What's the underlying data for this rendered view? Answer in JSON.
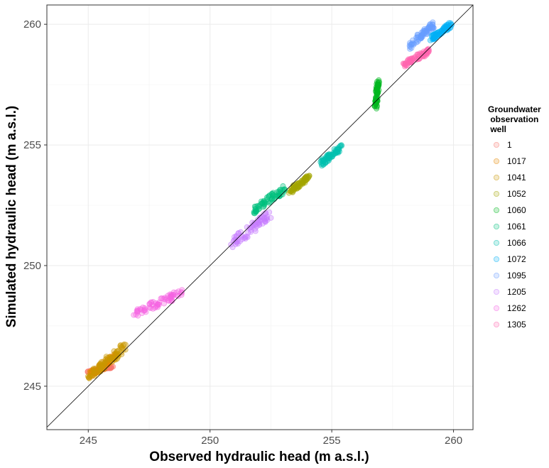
{
  "chart_data": {
    "type": "scatter",
    "title": "",
    "xlabel": "Observed hydraulic head (m a.s.l.)",
    "ylabel": "Simulated hydraulic head (m a.s.l.)",
    "xlim": [
      243.3,
      260.8
    ],
    "ylim": [
      243.2,
      260.8
    ],
    "xticks": [
      245,
      250,
      255,
      260
    ],
    "yticks": [
      245,
      250,
      255,
      260
    ],
    "grid": true,
    "reference_line": "1:1",
    "legend": {
      "title_lines": [
        "Groundwater",
        " observation",
        " well"
      ],
      "placement": "right"
    },
    "series": [
      {
        "name": "1",
        "color": "#F8766D",
        "x": [
          245.0,
          246.0
        ],
        "y": [
          245.6,
          245.8
        ]
      },
      {
        "name": "1017",
        "color": "#E58700",
        "x": [
          245.1,
          246.1
        ],
        "y": [
          245.45,
          246.25
        ]
      },
      {
        "name": "1041",
        "color": "#C99800",
        "x": [
          245.0,
          246.5
        ],
        "y": [
          245.4,
          246.6
        ]
      },
      {
        "name": "1052",
        "color": "#A3A500",
        "x": [
          253.3,
          254.1
        ],
        "y": [
          253.1,
          253.7
        ]
      },
      {
        "name": "1060",
        "color": "#00B81F",
        "x": [
          256.8,
          256.9
        ],
        "y": [
          256.6,
          257.6
        ]
      },
      {
        "name": "1061",
        "color": "#00BF7D",
        "x": [
          251.8,
          253.1
        ],
        "y": [
          252.3,
          253.2
        ]
      },
      {
        "name": "1066",
        "color": "#00C0AF",
        "x": [
          254.5,
          255.4
        ],
        "y": [
          254.2,
          254.9
        ]
      },
      {
        "name": "1072",
        "color": "#00B0F6",
        "x": [
          259.1,
          259.9
        ],
        "y": [
          259.4,
          260.0
        ]
      },
      {
        "name": "1095",
        "color": "#679DFF",
        "x": [
          258.2,
          259.2
        ],
        "y": [
          259.1,
          260.0
        ]
      },
      {
        "name": "1205",
        "color": "#C77CFF",
        "x": [
          250.9,
          252.5
        ],
        "y": [
          250.9,
          252.2
        ]
      },
      {
        "name": "1262",
        "color": "#F564E3",
        "x": [
          246.9,
          248.9
        ],
        "y": [
          248.0,
          248.9
        ]
      },
      {
        "name": "1305",
        "color": "#FF65AF",
        "x": [
          257.9,
          259.0
        ],
        "y": [
          258.3,
          258.9
        ]
      }
    ]
  }
}
